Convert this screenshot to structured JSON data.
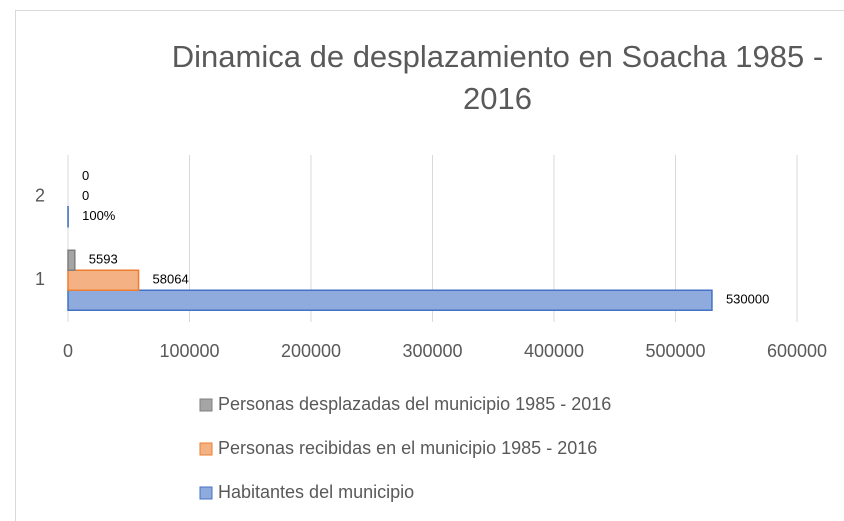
{
  "chart_data": {
    "type": "bar",
    "orientation": "horizontal",
    "title": "Dinamica de desplazamiento en Soacha 1985 - 2016",
    "categories": [
      "1",
      "2"
    ],
    "series": [
      {
        "name": "Habitantes del municipio",
        "color": "#8faadc",
        "edge": "#4472c4",
        "values": [
          530000,
          100
        ],
        "value_labels": [
          "530000",
          "100%"
        ]
      },
      {
        "name": "Personas recibidas en el municipio 1985 - 2016",
        "color": "#f4b183",
        "edge": "#ed7d31",
        "values": [
          58064,
          0
        ]
      },
      {
        "name": "Personas desplazadas del municipio 1985 - 2016",
        "color": "#a5a5a5",
        "edge": "#7f7f7f",
        "values": [
          5593,
          0
        ]
      }
    ],
    "xlim": [
      0,
      600000
    ],
    "xticks": [
      0,
      100000,
      200000,
      300000,
      400000,
      500000,
      600000
    ],
    "grid": true,
    "legend": "bottom"
  }
}
